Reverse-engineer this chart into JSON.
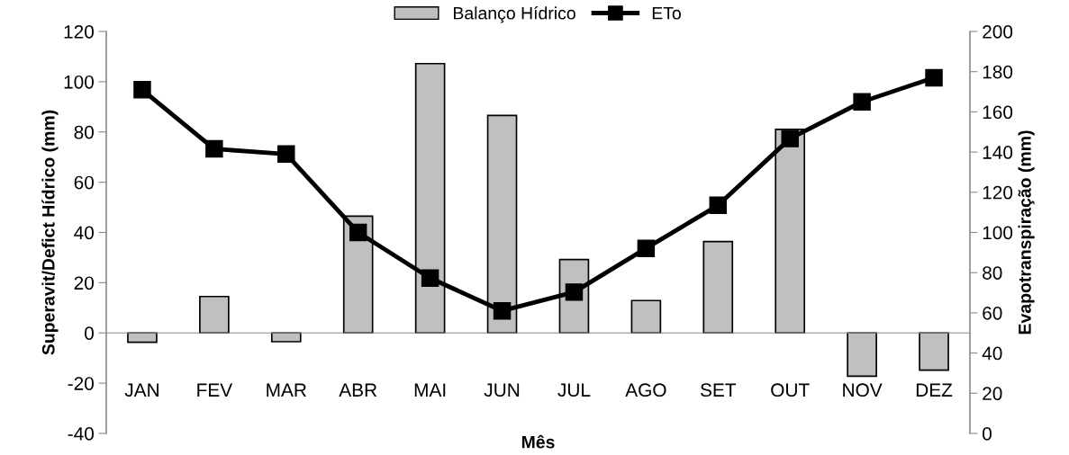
{
  "chart_data": {
    "type": "bar",
    "xlabel": "Mês",
    "ylabel": "Superavit/Defict Hídrico (mm)",
    "y2label": "Evapotranspiração (mm)",
    "categories": [
      "JAN",
      "FEV",
      "MAR",
      "ABR",
      "MAI",
      "JUN",
      "JUL",
      "AGO",
      "SET",
      "OUT",
      "NOV",
      "DEZ"
    ],
    "series": [
      {
        "name": "Balanço Hídrico",
        "color": "#c0c0c0",
        "values": [
          -3.7,
          14.5,
          -3.5,
          46.5,
          107.2,
          86.6,
          29.2,
          12.9,
          36.4,
          81,
          -17.2,
          -14.8
        ]
      },
      {
        "name": "ETo",
        "type": "line",
        "axis": "y2",
        "color": "#000000",
        "marker": "square",
        "values": [
          171,
          141.6,
          139,
          100,
          77.3,
          61,
          70.3,
          92.1,
          113.5,
          146.7,
          165,
          177
        ]
      }
    ],
    "ylim": [
      -40,
      120
    ],
    "yticks": [
      -40,
      -20,
      0,
      20,
      40,
      60,
      80,
      100,
      120
    ],
    "y2lim": [
      0,
      200
    ],
    "y2ticks": [
      0,
      20,
      40,
      60,
      80,
      100,
      120,
      140,
      160,
      180,
      200
    ],
    "legend": "top"
  }
}
